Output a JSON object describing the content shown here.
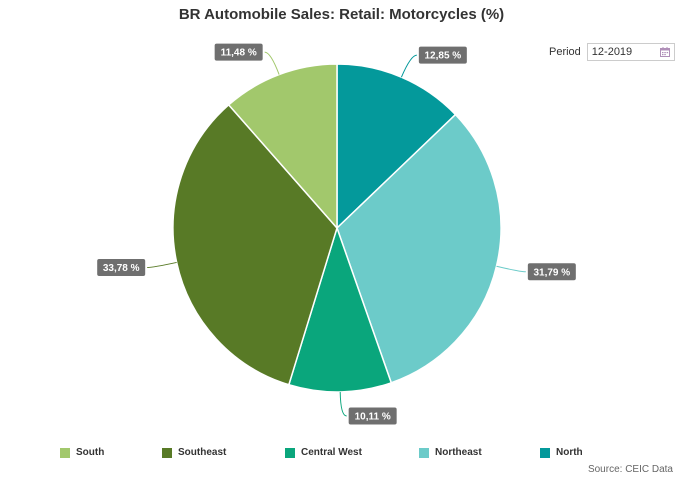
{
  "chart_data": {
    "type": "pie",
    "title": "BR Automobile Sales: Retail: Motorcycles (%)",
    "slices": [
      {
        "name": "North",
        "value": 12.85,
        "label": "12,85 %",
        "color": "#04999b"
      },
      {
        "name": "Northeast",
        "value": 31.79,
        "label": "31,79 %",
        "color": "#6ccbc9"
      },
      {
        "name": "Central West",
        "value": 10.11,
        "label": "10,11 %",
        "color": "#0aa67c"
      },
      {
        "name": "Southeast",
        "value": 33.78,
        "label": "33,78 %",
        "color": "#587a26"
      },
      {
        "name": "South",
        "value": 11.48,
        "label": "11,48 %",
        "color": "#a2c86c"
      }
    ],
    "legend": {
      "placement": "bottom",
      "entries": [
        "South",
        "Southeast",
        "Central West",
        "Northeast",
        "North"
      ]
    }
  },
  "period": {
    "label": "Period",
    "value": "12-2019"
  },
  "source": "Source: CEIC Data"
}
